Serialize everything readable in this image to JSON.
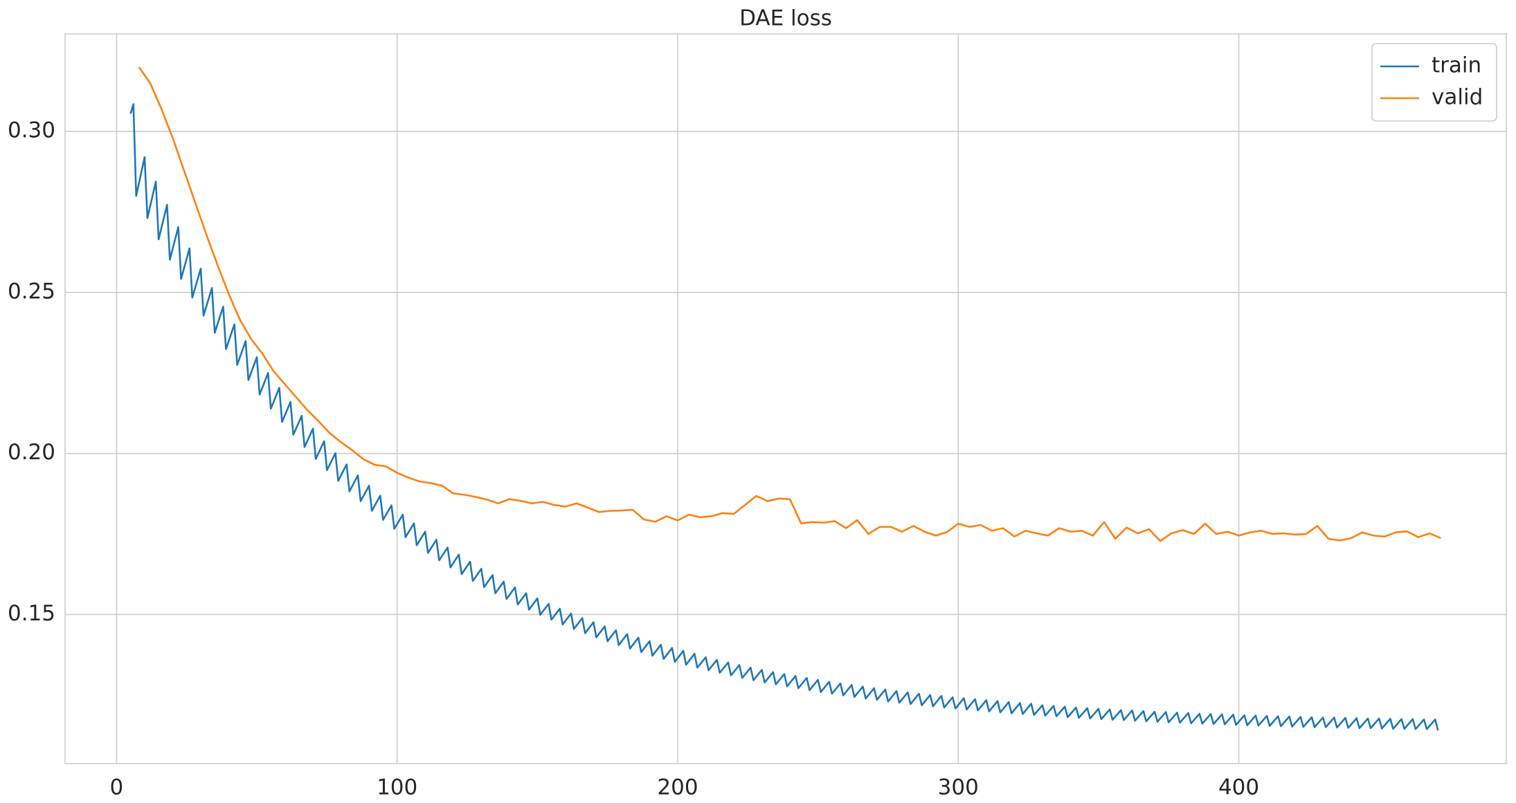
{
  "chart_data": {
    "type": "line",
    "title": "DAE loss",
    "xlim": [
      -18.35,
      495.35
    ],
    "xticks": [
      0,
      100,
      200,
      300,
      400
    ],
    "ylim": [
      0.1037,
      0.3303
    ],
    "yticks": [
      {
        "value": 0.15,
        "label": "0.15"
      },
      {
        "value": 0.2,
        "label": "0.20"
      },
      {
        "value": 0.25,
        "label": "0.25"
      },
      {
        "value": 0.3,
        "label": "0.30"
      }
    ],
    "grid": true,
    "legend": "upper right",
    "series": [
      {
        "name": "train",
        "color": "#1f77b4",
        "x": [
          5,
          6,
          7,
          10,
          11,
          14,
          15,
          18,
          19,
          22,
          23,
          26,
          27,
          30,
          31,
          34,
          35,
          38,
          39,
          42,
          43,
          46,
          47,
          50,
          51,
          54,
          55,
          58,
          59,
          62,
          63,
          66,
          67,
          70,
          71,
          74,
          75,
          78,
          79,
          82,
          83,
          86,
          87,
          90,
          91,
          94,
          95,
          98,
          99,
          102,
          103,
          106,
          107,
          110,
          111,
          114,
          115,
          118,
          119,
          122,
          123,
          126,
          127,
          130,
          131,
          134,
          135,
          138,
          139,
          142,
          143,
          146,
          147,
          150,
          151,
          154,
          155,
          158,
          159,
          162,
          163,
          166,
          167,
          170,
          171,
          174,
          175,
          178,
          179,
          182,
          183,
          186,
          187,
          190,
          191,
          194,
          195,
          198,
          199,
          202,
          203,
          206,
          207,
          210,
          211,
          214,
          215,
          218,
          219,
          222,
          223,
          226,
          227,
          230,
          231,
          234,
          235,
          238,
          239,
          242,
          243,
          246,
          247,
          250,
          251,
          254,
          255,
          258,
          259,
          262,
          263,
          266,
          267,
          270,
          271,
          274,
          275,
          278,
          279,
          282,
          283,
          286,
          287,
          290,
          291,
          294,
          295,
          298,
          299,
          302,
          303,
          306,
          307,
          310,
          311,
          314,
          315,
          318,
          319,
          322,
          323,
          326,
          327,
          330,
          331,
          334,
          335,
          338,
          339,
          342,
          343,
          346,
          347,
          350,
          351,
          354,
          355,
          358,
          359,
          362,
          363,
          366,
          367,
          370,
          371,
          374,
          375,
          378,
          379,
          382,
          383,
          386,
          387,
          390,
          391,
          394,
          395,
          398,
          399,
          402,
          403,
          406,
          407,
          410,
          411,
          414,
          415,
          418,
          419,
          422,
          423,
          426,
          427,
          430,
          431,
          434,
          435,
          438,
          439,
          442,
          443,
          446,
          447,
          450,
          451,
          454,
          455,
          458,
          459,
          462,
          463,
          466,
          467,
          470,
          471
        ],
        "values": [
          0.3055,
          0.3085,
          0.28,
          0.292,
          0.2731,
          0.2844,
          0.2665,
          0.2772,
          0.2602,
          0.2703,
          0.2542,
          0.2637,
          0.2484,
          0.2574,
          0.2428,
          0.2514,
          0.2375,
          0.2456,
          0.2324,
          0.2401,
          0.2275,
          0.2349,
          0.2228,
          0.2299,
          0.2183,
          0.225,
          0.2139,
          0.2204,
          0.2098,
          0.216,
          0.2058,
          0.2117,
          0.202,
          0.2077,
          0.1983,
          0.2038,
          0.1948,
          0.2001,
          0.1915,
          0.1966,
          0.1882,
          0.1932,
          0.1852,
          0.19,
          0.1822,
          0.1869,
          0.1794,
          0.1839,
          0.1766,
          0.181,
          0.174,
          0.1783,
          0.1715,
          0.1757,
          0.1691,
          0.1732,
          0.1668,
          0.1708,
          0.1646,
          0.1686,
          0.1625,
          0.1664,
          0.1604,
          0.1642,
          0.1585,
          0.1622,
          0.1566,
          0.1602,
          0.1548,
          0.1584,
          0.1531,
          0.1566,
          0.1515,
          0.155,
          0.1499,
          0.1533,
          0.1484,
          0.1518,
          0.1469,
          0.1503,
          0.1455,
          0.1489,
          0.1442,
          0.1476,
          0.1429,
          0.1463,
          0.1417,
          0.1451,
          0.1405,
          0.1439,
          0.1394,
          0.1428,
          0.1383,
          0.1417,
          0.1372,
          0.1406,
          0.1362,
          0.1396,
          0.1353,
          0.1387,
          0.1344,
          0.1378,
          0.1335,
          0.1367,
          0.1327,
          0.1359,
          0.1319,
          0.1351,
          0.1311,
          0.1343,
          0.1303,
          0.1335,
          0.1296,
          0.1328,
          0.1289,
          0.1321,
          0.1283,
          0.1315,
          0.1277,
          0.1309,
          0.1271,
          0.1303,
          0.1265,
          0.1297,
          0.1259,
          0.1291,
          0.1254,
          0.1286,
          0.1249,
          0.1281,
          0.1244,
          0.1276,
          0.1239,
          0.1271,
          0.1235,
          0.1267,
          0.123,
          0.1262,
          0.1226,
          0.1258,
          0.1222,
          0.1254,
          0.1218,
          0.125,
          0.1215,
          0.1247,
          0.1211,
          0.1243,
          0.1208,
          0.124,
          0.1205,
          0.1237,
          0.1202,
          0.1234,
          0.1199,
          0.1231,
          0.1196,
          0.1228,
          0.1193,
          0.1225,
          0.1191,
          0.1223,
          0.1188,
          0.1218,
          0.1186,
          0.1216,
          0.1184,
          0.1214,
          0.1181,
          0.1211,
          0.1179,
          0.1209,
          0.1177,
          0.1207,
          0.1175,
          0.1205,
          0.1173,
          0.1203,
          0.1172,
          0.1202,
          0.117,
          0.12,
          0.1168,
          0.1198,
          0.1167,
          0.1197,
          0.1165,
          0.1195,
          0.1164,
          0.1194,
          0.1162,
          0.1192,
          0.1161,
          0.1191,
          0.116,
          0.119,
          0.1159,
          0.1189,
          0.1157,
          0.1187,
          0.1156,
          0.1186,
          0.1155,
          0.1185,
          0.1154,
          0.1184,
          0.1153,
          0.1183,
          0.1152,
          0.1182,
          0.1151,
          0.1181,
          0.115,
          0.118,
          0.115,
          0.118,
          0.1149,
          0.1179,
          0.1148,
          0.1178,
          0.1147,
          0.1177,
          0.1147,
          0.1177,
          0.1146,
          0.1176,
          0.1145,
          0.1175,
          0.1145,
          0.1175,
          0.1144,
          0.1174,
          0.1144,
          0.1174,
          0.114
        ]
      },
      {
        "name": "valid",
        "color": "#ff7f0e",
        "x": [
          8,
          12,
          16,
          20,
          24,
          28,
          32,
          36,
          40,
          44,
          48,
          52,
          56,
          60,
          64,
          68,
          72,
          76,
          80,
          84,
          88,
          92,
          96,
          100,
          104,
          108,
          112,
          116,
          120,
          124,
          128,
          132,
          136,
          140,
          144,
          148,
          152,
          156,
          160,
          164,
          168,
          172,
          176,
          180,
          184,
          188,
          192,
          196,
          200,
          204,
          208,
          212,
          216,
          220,
          224,
          228,
          232,
          236,
          240,
          244,
          248,
          252,
          256,
          260,
          264,
          268,
          272,
          276,
          280,
          284,
          288,
          292,
          296,
          300,
          304,
          308,
          312,
          316,
          320,
          324,
          328,
          332,
          336,
          340,
          344,
          348,
          352,
          356,
          360,
          364,
          368,
          372,
          376,
          380,
          384,
          388,
          392,
          396,
          400,
          404,
          408,
          412,
          416,
          420,
          424,
          428,
          432,
          436,
          440,
          444,
          448,
          452,
          456,
          460,
          464,
          468,
          472
        ],
        "values": [
          0.32,
          0.315,
          0.307,
          0.298,
          0.288,
          0.278,
          0.268,
          0.2585,
          0.2495,
          0.2415,
          0.2355,
          0.231,
          0.2255,
          0.2215,
          0.2175,
          0.2135,
          0.21,
          0.2063,
          0.2035,
          0.201,
          0.1982,
          0.1965,
          0.196,
          0.194,
          0.1925,
          0.1913,
          0.1908,
          0.19,
          0.1876,
          0.1872,
          0.1865,
          0.1857,
          0.1845,
          0.1858,
          0.1853,
          0.1845,
          0.185,
          0.184,
          0.1835,
          0.1845,
          0.1832,
          0.1818,
          0.1822,
          0.1823,
          0.1825,
          0.1795,
          0.1788,
          0.1805,
          0.1792,
          0.181,
          0.1802,
          0.1805,
          0.1815,
          0.1812,
          0.184,
          0.1868,
          0.1852,
          0.186,
          0.1858,
          0.1783,
          0.1787,
          0.1785,
          0.179,
          0.1768,
          0.1793,
          0.175,
          0.1772,
          0.1772,
          0.1757,
          0.1775,
          0.1757,
          0.1745,
          0.1756,
          0.1782,
          0.1772,
          0.1778,
          0.176,
          0.1768,
          0.1742,
          0.176,
          0.1752,
          0.1745,
          0.1768,
          0.1757,
          0.176,
          0.1745,
          0.1787,
          0.1735,
          0.177,
          0.1752,
          0.1765,
          0.1728,
          0.1752,
          0.1762,
          0.175,
          0.1782,
          0.175,
          0.1757,
          0.1745,
          0.1755,
          0.176,
          0.175,
          0.1752,
          0.1748,
          0.175,
          0.1775,
          0.1735,
          0.173,
          0.1737,
          0.1755,
          0.1745,
          0.1742,
          0.1755,
          0.1758,
          0.174,
          0.1752,
          0.1737
        ]
      }
    ]
  }
}
